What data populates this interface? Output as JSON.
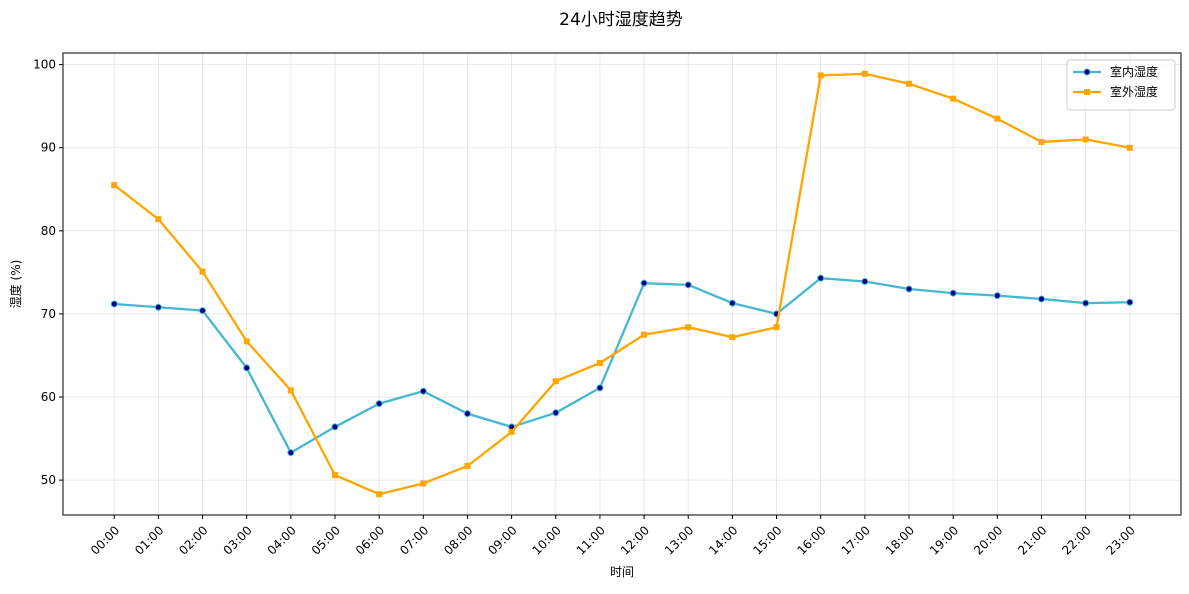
{
  "chart_data": {
    "type": "line",
    "title": "24小时湿度趋势",
    "xlabel": "时间",
    "ylabel": "湿度 (%)",
    "ylim": [
      45.8,
      101.4
    ],
    "yticks": [
      50,
      60,
      70,
      80,
      90,
      100
    ],
    "grid": true,
    "legend_position": "top-right",
    "categories": [
      "00:00",
      "01:00",
      "02:00",
      "03:00",
      "04:00",
      "05:00",
      "06:00",
      "07:00",
      "08:00",
      "09:00",
      "10:00",
      "11:00",
      "12:00",
      "13:00",
      "14:00",
      "15:00",
      "16:00",
      "17:00",
      "18:00",
      "19:00",
      "20:00",
      "21:00",
      "22:00",
      "23:00"
    ],
    "series": [
      {
        "name": "室内湿度",
        "color": "#45b7d1",
        "marker": "circle",
        "marker_color": "#00008b",
        "values": [
          71.2,
          70.8,
          70.4,
          63.5,
          53.3,
          56.4,
          59.2,
          60.7,
          58.0,
          56.4,
          58.1,
          61.1,
          73.7,
          73.5,
          71.3,
          70.0,
          74.3,
          73.9,
          73.0,
          72.5,
          72.2,
          71.8,
          71.3,
          71.4
        ]
      },
      {
        "name": "室外湿度",
        "color": "#ffa500",
        "marker": "square",
        "marker_color": "#ffa500",
        "values": [
          85.5,
          81.4,
          75.1,
          66.7,
          60.8,
          50.6,
          48.3,
          49.6,
          51.7,
          55.8,
          61.9,
          64.1,
          67.5,
          68.4,
          67.2,
          68.4,
          98.7,
          98.9,
          97.7,
          95.9,
          93.5,
          90.7,
          91.0,
          90.0
        ]
      }
    ]
  }
}
